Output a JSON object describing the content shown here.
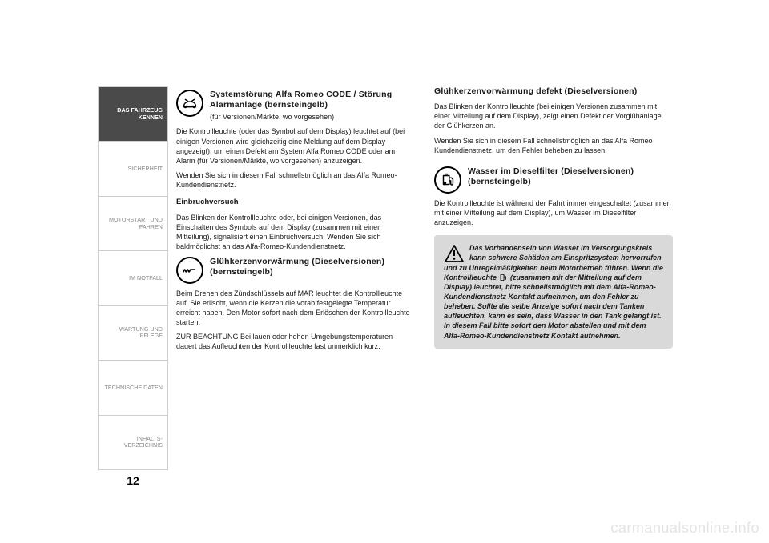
{
  "sidebar": {
    "tabs": [
      {
        "label": "DAS FAHRZEUG\nKENNEN",
        "active": true
      },
      {
        "label": "SICHERHEIT",
        "active": false
      },
      {
        "label": "MOTORSTART UND\nFAHREN",
        "active": false
      },
      {
        "label": "IM NOTFALL",
        "active": false
      },
      {
        "label": "WARTUNG UND\nPFLEGE",
        "active": false
      },
      {
        "label": "TECHNISCHE DATEN",
        "active": false
      },
      {
        "label": "INHALTS-\nVERZEICHNIS",
        "active": false
      }
    ]
  },
  "page_number": "12",
  "col1": {
    "sec1": {
      "title": "Systemstörung Alfa Romeo CODE / Störung Alarmanlage (bernsteingelb)",
      "subtitle": "(für Versionen/Märkte, wo vorgesehen)",
      "p1": "Die Kontrollleuchte (oder das Symbol auf dem Display) leuchtet auf (bei einigen Versionen wird gleichzeitig eine Meldung auf dem Display angezeigt), um einen Defekt am System Alfa Romeo CODE oder am Alarm (für Versionen/Märkte, wo vorgesehen) anzuzeigen.",
      "p2": "Wenden Sie sich in diesem Fall schnellstmöglich an das Alfa Romeo-Kundendienstnetz."
    },
    "sec2": {
      "subhead": "Einbruchversuch",
      "p1": "Das Blinken der Kontrollleuchte oder, bei einigen Versionen, das Einschalten des Symbols auf dem Display (zusammen mit einer Mitteilung), signalisiert einen Einbruchversuch. Wenden Sie sich baldmöglichst an das Alfa-Romeo-Kundendienstnetz."
    },
    "sec3": {
      "title": "Glühkerzenvorwärmung (Dieselversionen) (bernsteingelb)",
      "p1": "Beim Drehen des Zündschlüssels auf MAR leuchtet die Kontrollleuchte auf. Sie erlischt, wenn die Kerzen die vorab festgelegte Temperatur erreicht haben. Den Motor sofort nach dem Erlöschen der Kontrollleuchte starten.",
      "p2": "ZUR BEACHTUNG Bei lauen oder hohen Umgebungstemperaturen dauert das Aufleuchten der Kontrollleuchte fast unmerklich kurz."
    }
  },
  "col2": {
    "sec1": {
      "title": "Glühkerzenvorwärmung defekt (Dieselversionen)",
      "p1": "Das Blinken der Kontrollleuchte (bei einigen Versionen zusammen mit einer Mitteilung auf dem Display), zeigt einen Defekt der Vorglühanlage der Glühkerzen an.",
      "p2": "Wenden Sie sich in diesem Fall schnellstmöglich an das Alfa Romeo Kundendienstnetz, um den Fehler beheben zu lassen."
    },
    "sec2": {
      "title": "Wasser im Dieselfilter (Dieselversionen) (bernsteingelb)",
      "p1": "Die Kontrollleuchte ist während der Fahrt immer eingeschaltet (zusammen mit einer Mitteilung auf dem Display), um Wasser im Dieselfilter anzuzeigen."
    },
    "warning": {
      "text_a": "Das Vorhandensein von Wasser im Versorgungskreis kann schwere Schäden am Einspritzsystem hervorrufen und zu Unregelmäßigkeiten beim Motorbetrieb führen. Wenn die Kontrollleuchte ",
      "text_b": " (zusammen mit der Mitteilung auf dem Display) leuchtet, bitte schnellstmöglich mit dem Alfa-Romeo-Kundendienstnetz Kontakt aufnehmen, um den Fehler zu beheben. Sollte die selbe Anzeige sofort nach dem Tanken aufleuchten, kann es sein, dass Wasser in den Tank gelangt ist. In diesem Fall bitte sofort den Motor abstellen und mit dem Alfa-Romeo-Kundendienstnetz Kontakt aufnehmen."
    }
  },
  "watermark": "carmanualsonline.info",
  "colors": {
    "tab_active_bg": "#4a4a4a",
    "tab_border": "#cfcfcf",
    "tab_text": "#8a8a8a",
    "warning_bg": "#d9d9d9",
    "watermark": "#e3e3e3"
  }
}
